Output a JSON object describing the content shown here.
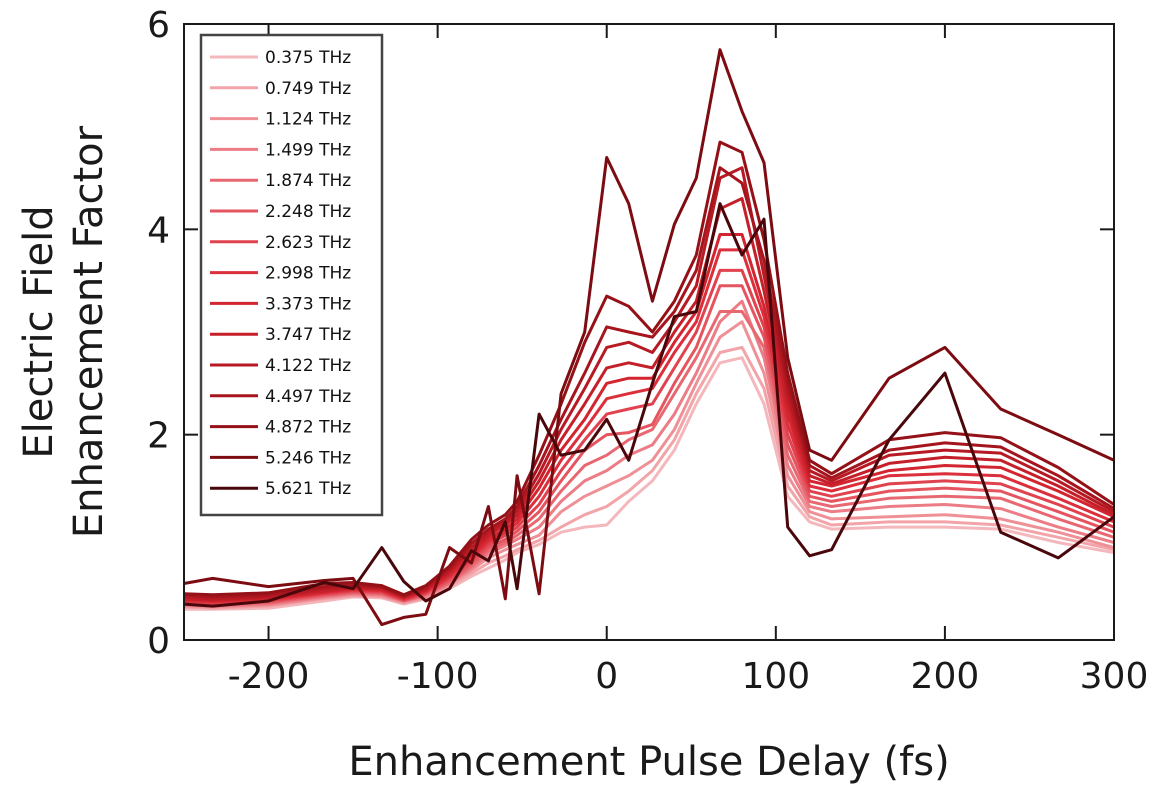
{
  "chart_data": {
    "type": "line",
    "title": "",
    "xlabel": "Enhancement Pulse Delay (fs)",
    "ylabel_lines": [
      "Electric Field",
      "Enhancement Factor"
    ],
    "xlim": [
      -250,
      300
    ],
    "ylim": [
      0,
      6
    ],
    "xticks": [
      -200,
      -100,
      0,
      100,
      200,
      300
    ],
    "yticks": [
      0,
      2,
      4,
      6
    ],
    "grid": false,
    "legend_position": "top-left",
    "x": [
      -250,
      -233,
      -200,
      -167,
      -150,
      -133,
      -120,
      -107,
      -93,
      -80,
      -70,
      -60,
      -53,
      -40,
      -27,
      -13,
      0,
      13,
      27,
      40,
      53,
      67,
      80,
      93,
      107,
      120,
      133,
      167,
      200,
      233,
      267,
      300
    ],
    "series": [
      {
        "name": "0.375 THz",
        "color": "#f4b8bc",
        "values": [
          0.3,
          0.3,
          0.31,
          0.38,
          0.42,
          0.41,
          0.35,
          0.4,
          0.5,
          0.62,
          0.7,
          0.78,
          0.85,
          0.93,
          1.05,
          1.1,
          1.12,
          1.35,
          1.55,
          1.85,
          2.3,
          2.7,
          2.75,
          2.3,
          1.4,
          1.15,
          1.08,
          1.1,
          1.1,
          1.08,
          0.95,
          0.85
        ]
      },
      {
        "name": "0.749 THz",
        "color": "#f2a4a9",
        "values": [
          0.32,
          0.31,
          0.33,
          0.4,
          0.43,
          0.42,
          0.36,
          0.41,
          0.52,
          0.65,
          0.75,
          0.82,
          0.88,
          0.97,
          1.1,
          1.22,
          1.3,
          1.45,
          1.65,
          1.95,
          2.4,
          2.8,
          2.85,
          2.45,
          1.5,
          1.2,
          1.12,
          1.15,
          1.15,
          1.12,
          1.0,
          0.88
        ]
      },
      {
        "name": "1.124 THz",
        "color": "#ef9097",
        "values": [
          0.33,
          0.32,
          0.34,
          0.41,
          0.44,
          0.43,
          0.37,
          0.42,
          0.54,
          0.68,
          0.8,
          0.88,
          0.93,
          1.02,
          1.25,
          1.4,
          1.5,
          1.6,
          1.75,
          2.05,
          2.5,
          2.95,
          3.1,
          2.6,
          1.6,
          1.25,
          1.18,
          1.2,
          1.22,
          1.18,
          1.05,
          0.9
        ]
      },
      {
        "name": "1.499 THz",
        "color": "#ec7c85",
        "values": [
          0.34,
          0.33,
          0.35,
          0.42,
          0.45,
          0.44,
          0.38,
          0.43,
          0.55,
          0.7,
          0.84,
          0.92,
          0.98,
          1.1,
          1.35,
          1.55,
          1.65,
          1.8,
          1.9,
          2.2,
          2.6,
          3.1,
          3.3,
          2.75,
          1.7,
          1.3,
          1.25,
          1.3,
          1.32,
          1.28,
          1.1,
          0.95
        ]
      },
      {
        "name": "1.874 THz",
        "color": "#e86872",
        "values": [
          0.35,
          0.34,
          0.36,
          0.43,
          0.46,
          0.45,
          0.38,
          0.44,
          0.56,
          0.72,
          0.87,
          0.95,
          1.02,
          1.18,
          1.45,
          1.7,
          1.8,
          1.95,
          2.05,
          2.4,
          2.75,
          3.2,
          3.2,
          2.85,
          1.8,
          1.35,
          1.3,
          1.38,
          1.4,
          1.38,
          1.18,
          1.0
        ]
      },
      {
        "name": "2.248 THz",
        "color": "#e45560",
        "values": [
          0.36,
          0.35,
          0.37,
          0.44,
          0.47,
          0.46,
          0.39,
          0.45,
          0.58,
          0.75,
          0.9,
          0.98,
          1.06,
          1.25,
          1.55,
          1.85,
          2.0,
          2.02,
          2.1,
          2.5,
          2.85,
          3.45,
          3.45,
          2.95,
          1.9,
          1.4,
          1.35,
          1.45,
          1.48,
          1.45,
          1.25,
          1.05
        ]
      },
      {
        "name": "2.623 THz",
        "color": "#e0424e",
        "values": [
          0.37,
          0.36,
          0.38,
          0.45,
          0.48,
          0.47,
          0.39,
          0.46,
          0.6,
          0.78,
          0.93,
          1.02,
          1.1,
          1.32,
          1.65,
          1.95,
          2.2,
          2.25,
          2.3,
          2.65,
          3.0,
          3.6,
          3.6,
          3.05,
          2.0,
          1.45,
          1.4,
          1.52,
          1.55,
          1.52,
          1.32,
          1.1
        ]
      },
      {
        "name": "2.998 THz",
        "color": "#dc2f3c",
        "values": [
          0.38,
          0.37,
          0.39,
          0.46,
          0.49,
          0.48,
          0.4,
          0.47,
          0.62,
          0.8,
          0.96,
          1.05,
          1.14,
          1.4,
          1.75,
          2.05,
          2.35,
          2.4,
          2.45,
          2.8,
          3.1,
          3.8,
          3.8,
          3.15,
          2.1,
          1.5,
          1.45,
          1.6,
          1.62,
          1.6,
          1.38,
          1.15
        ]
      },
      {
        "name": "3.373 THz",
        "color": "#d3252f",
        "values": [
          0.39,
          0.38,
          0.4,
          0.47,
          0.5,
          0.49,
          0.41,
          0.48,
          0.64,
          0.83,
          0.99,
          1.08,
          1.18,
          1.48,
          1.85,
          2.15,
          2.5,
          2.55,
          2.55,
          2.9,
          3.2,
          3.95,
          3.95,
          3.25,
          2.2,
          1.55,
          1.5,
          1.65,
          1.7,
          1.68,
          1.45,
          1.2
        ]
      },
      {
        "name": "3.747 THz",
        "color": "#c51f29",
        "values": [
          0.4,
          0.39,
          0.41,
          0.48,
          0.51,
          0.5,
          0.42,
          0.49,
          0.66,
          0.86,
          1.02,
          1.12,
          1.22,
          1.55,
          1.95,
          2.3,
          2.65,
          2.7,
          2.65,
          3.0,
          3.3,
          4.2,
          4.3,
          3.4,
          2.3,
          1.6,
          1.52,
          1.72,
          1.78,
          1.75,
          1.5,
          1.22
        ]
      },
      {
        "name": "4.122 THz",
        "color": "#b71a23",
        "values": [
          0.42,
          0.4,
          0.42,
          0.5,
          0.52,
          0.51,
          0.42,
          0.5,
          0.68,
          0.9,
          1.05,
          1.15,
          1.26,
          1.62,
          2.05,
          2.45,
          2.85,
          2.9,
          2.8,
          3.1,
          3.45,
          4.5,
          4.6,
          3.55,
          2.4,
          1.65,
          1.55,
          1.8,
          1.85,
          1.82,
          1.55,
          1.25
        ]
      },
      {
        "name": "4.497 THz",
        "color": "#a6151d",
        "values": [
          0.44,
          0.42,
          0.44,
          0.52,
          0.54,
          0.52,
          0.43,
          0.52,
          0.7,
          0.94,
          1.08,
          1.18,
          1.3,
          1.7,
          2.15,
          2.6,
          3.05,
          3.0,
          2.95,
          3.2,
          3.6,
          4.6,
          4.45,
          3.7,
          2.5,
          1.7,
          1.58,
          1.85,
          1.92,
          1.88,
          1.6,
          1.28
        ]
      },
      {
        "name": "4.872 THz",
        "color": "#941117",
        "values": [
          0.45,
          0.44,
          0.46,
          0.55,
          0.56,
          0.53,
          0.44,
          0.53,
          0.72,
          0.98,
          1.12,
          1.22,
          1.35,
          1.8,
          2.3,
          2.9,
          3.35,
          3.25,
          3.0,
          3.3,
          3.75,
          4.85,
          4.75,
          3.9,
          2.6,
          1.75,
          1.62,
          1.95,
          2.02,
          1.97,
          1.68,
          1.32
        ]
      },
      {
        "name": "5.246 THz",
        "color": "#7d0c12",
        "values": [
          0.55,
          0.6,
          0.52,
          0.58,
          0.6,
          0.15,
          0.22,
          0.25,
          0.9,
          0.75,
          1.3,
          0.4,
          1.6,
          0.45,
          2.4,
          3.0,
          4.7,
          4.25,
          3.3,
          4.05,
          4.5,
          5.75,
          5.15,
          4.65,
          2.75,
          1.85,
          1.75,
          2.55,
          2.85,
          2.25,
          2.0,
          1.75
        ]
      },
      {
        "name": "5.621 THz",
        "color": "#4a070b",
        "values": [
          0.35,
          0.33,
          0.38,
          0.56,
          0.5,
          0.9,
          0.57,
          0.38,
          0.5,
          0.87,
          0.77,
          1.15,
          0.5,
          2.2,
          1.8,
          1.85,
          2.15,
          1.75,
          2.5,
          3.15,
          3.2,
          4.25,
          3.75,
          4.1,
          1.1,
          0.82,
          0.88,
          1.95,
          2.6,
          1.05,
          0.8,
          1.2
        ]
      }
    ]
  }
}
